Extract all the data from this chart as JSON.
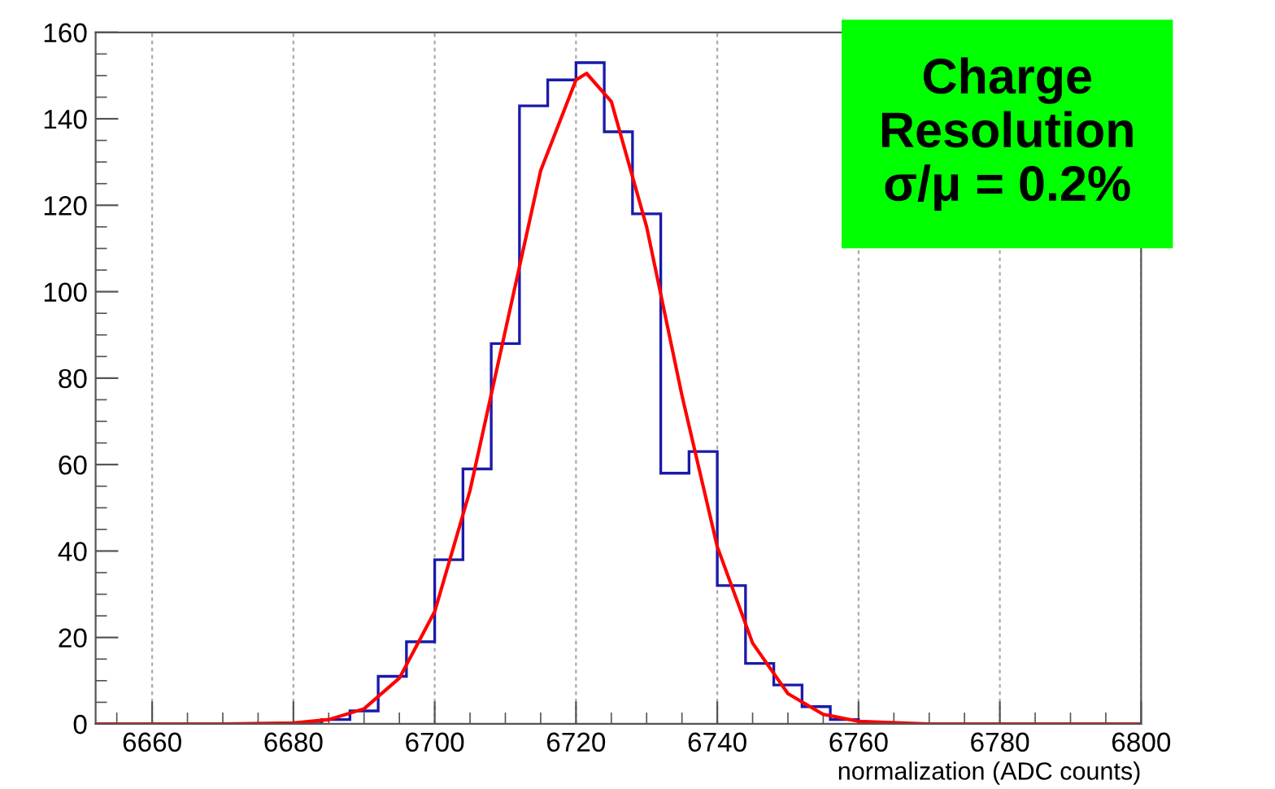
{
  "chart_data": {
    "type": "histogram",
    "xlabel": "normalization (ADC counts)",
    "annotations": [
      "Charge\nResolution\nσ/μ = 0.2%"
    ],
    "series": [
      {
        "color": "#1a1aaa",
        "bins": [
          6652,
          6656,
          6660,
          6664,
          6668,
          6672,
          6676,
          6680,
          6684,
          6688,
          6692,
          6696,
          6700,
          6704,
          6708,
          6712,
          6716,
          6720,
          6724,
          6728,
          6732,
          6736,
          6740,
          6744,
          6748,
          6752,
          6756,
          6760,
          6764,
          6768,
          6772,
          6776,
          6780,
          6784,
          6788,
          6792,
          6796,
          6800
        ],
        "values": [
          0,
          0,
          0,
          0,
          0,
          0,
          0,
          0,
          1,
          3,
          11,
          19,
          38,
          59,
          88,
          143,
          149,
          153,
          137,
          118,
          58,
          63,
          32,
          14,
          9,
          4,
          1,
          0,
          0,
          0,
          0,
          0,
          0,
          0,
          0,
          0,
          0
        ]
      },
      {
        "type": "line",
        "color": "#ff0000",
        "x": [
          6652,
          6670,
          6680,
          6685,
          6690,
          6695,
          6700,
          6705,
          6710,
          6715,
          6720,
          6721.5,
          6725,
          6730,
          6735,
          6740,
          6745,
          6750,
          6755,
          6760,
          6770,
          6800
        ],
        "values": [
          0,
          0,
          0.2,
          1,
          3.5,
          10.6,
          26,
          54,
          91,
          128,
          149,
          150.5,
          144,
          115,
          76,
          41,
          18.7,
          7,
          2.2,
          0.6,
          0,
          0
        ]
      }
    ],
    "xlim": [
      6652,
      6800
    ],
    "xticks": [
      6660,
      6680,
      6700,
      6720,
      6740,
      6760,
      6780,
      6800
    ],
    "ylim": [
      0,
      160
    ],
    "yticks": [
      0,
      20,
      40,
      60,
      80,
      100,
      120,
      140,
      160
    ],
    "grid": "x"
  }
}
